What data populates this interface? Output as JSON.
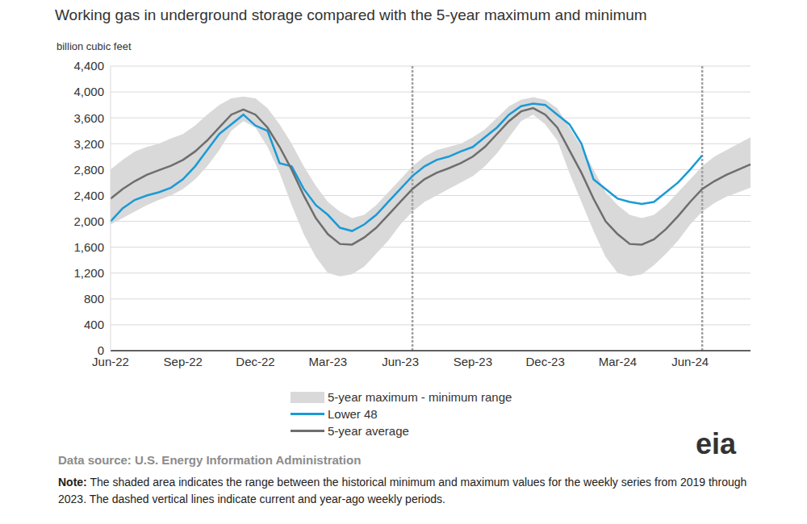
{
  "chart_data": {
    "type": "line",
    "title": "Working gas in underground storage compared with the 5-year maximum and minimum",
    "y_label": "billion cubic feet",
    "source": "Data source: U.S. Energy Information Administration",
    "note_label": "Note:",
    "note": "The shaded area indicates the range between the historical minimum and maximum values for the weekly series from 2019 through 2023. The dashed vertical lines indicate current and year-ago weekly periods.",
    "logo": "eia",
    "grid": true,
    "categories": [
      "Jun-22",
      null,
      null,
      null,
      null,
      null,
      "Sep-22",
      null,
      null,
      null,
      null,
      null,
      "Dec-22",
      null,
      null,
      null,
      null,
      null,
      "Mar-23",
      null,
      null,
      null,
      null,
      null,
      "Jun-23",
      null,
      null,
      null,
      null,
      null,
      "Sep-23",
      null,
      null,
      null,
      null,
      null,
      "Dec-23",
      null,
      null,
      null,
      null,
      null,
      "Mar-24",
      null,
      null,
      null,
      null,
      null,
      "Jun-24",
      null,
      null,
      null,
      null,
      null
    ],
    "ylim": [
      0,
      4400
    ],
    "yticks": [
      0,
      400,
      800,
      {
        "value": 1200,
        "label": "1,200"
      },
      {
        "value": 1600,
        "label": "1,600"
      },
      {
        "value": 2000,
        "label": "2,000"
      },
      {
        "value": 2400,
        "label": "2,400"
      },
      {
        "value": 2800,
        "label": "2,800"
      },
      {
        "value": 3200,
        "label": "3,200"
      },
      {
        "value": 3600,
        "label": "3,600"
      },
      {
        "value": 4000,
        "label": "4,000"
      },
      {
        "value": 4400,
        "label": "4,400"
      }
    ],
    "series": [
      {
        "name": "5-year maximum - minimum range",
        "type": "area",
        "color": "#d9d9d9",
        "values": [
          [
            1950,
            2800
          ],
          [
            2050,
            2950
          ],
          [
            2150,
            3080
          ],
          [
            2250,
            3150
          ],
          [
            2330,
            3200
          ],
          [
            2400,
            3280
          ],
          [
            2500,
            3350
          ],
          [
            2650,
            3480
          ],
          [
            2850,
            3650
          ],
          [
            3100,
            3800
          ],
          [
            3400,
            3900
          ],
          [
            3550,
            3930
          ],
          [
            3450,
            3900
          ],
          [
            3150,
            3750
          ],
          [
            2750,
            3500
          ],
          [
            2250,
            3200
          ],
          [
            1800,
            2850
          ],
          [
            1450,
            2550
          ],
          [
            1200,
            2300
          ],
          [
            1150,
            2150
          ],
          [
            1180,
            2050
          ],
          [
            1300,
            2100
          ],
          [
            1500,
            2250
          ],
          [
            1700,
            2450
          ],
          [
            1950,
            2650
          ],
          [
            2150,
            2850
          ],
          [
            2300,
            3000
          ],
          [
            2400,
            3100
          ],
          [
            2500,
            3150
          ],
          [
            2600,
            3200
          ],
          [
            2700,
            3300
          ],
          [
            2850,
            3420
          ],
          [
            3050,
            3600
          ],
          [
            3300,
            3780
          ],
          [
            3550,
            3880
          ],
          [
            3650,
            3920
          ],
          [
            3500,
            3880
          ],
          [
            3250,
            3750
          ],
          [
            2750,
            3450
          ],
          [
            2300,
            3150
          ],
          [
            1850,
            2800
          ],
          [
            1450,
            2450
          ],
          [
            1200,
            2250
          ],
          [
            1150,
            2100
          ],
          [
            1180,
            2050
          ],
          [
            1320,
            2100
          ],
          [
            1500,
            2250
          ],
          [
            1700,
            2450
          ],
          [
            1950,
            2650
          ],
          [
            2150,
            2850
          ],
          [
            2280,
            3000
          ],
          [
            2380,
            3100
          ],
          [
            2450,
            3200
          ],
          [
            2520,
            3300
          ]
        ]
      },
      {
        "name": "Lower 48",
        "type": "line",
        "color": "#1a9ad6",
        "values": [
          2000,
          2200,
          2330,
          2400,
          2450,
          2520,
          2650,
          2850,
          3100,
          3350,
          3500,
          3650,
          3480,
          3400,
          2900,
          2850,
          2500,
          2250,
          2100,
          1900,
          1850,
          1950,
          2100,
          2300,
          2500,
          2700,
          2850,
          2950,
          3000,
          3080,
          3150,
          3300,
          3450,
          3650,
          3780,
          3820,
          3800,
          3650,
          3500,
          3200,
          2650,
          2500,
          2350,
          2300,
          2270,
          2300,
          2450,
          2600,
          2800,
          3020,
          null,
          null,
          null,
          null
        ]
      },
      {
        "name": "5-year average",
        "type": "line",
        "color": "#6e6e6e",
        "values": [
          2350,
          2500,
          2620,
          2720,
          2790,
          2860,
          2950,
          3080,
          3250,
          3450,
          3650,
          3730,
          3650,
          3450,
          3150,
          2800,
          2400,
          2050,
          1800,
          1650,
          1640,
          1750,
          1900,
          2100,
          2300,
          2500,
          2650,
          2750,
          2820,
          2900,
          3000,
          3150,
          3350,
          3550,
          3700,
          3750,
          3650,
          3450,
          3100,
          2750,
          2350,
          2000,
          1800,
          1650,
          1640,
          1720,
          1880,
          2080,
          2300,
          2500,
          2620,
          2720,
          2800,
          2880
        ]
      }
    ]
  }
}
